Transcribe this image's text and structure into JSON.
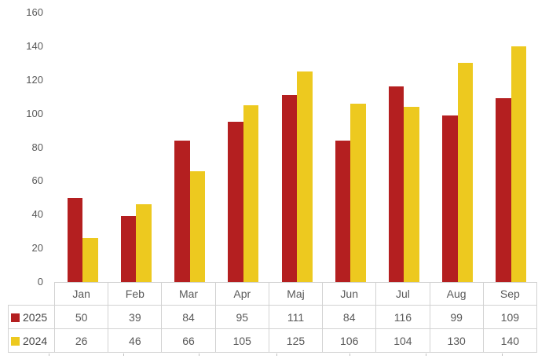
{
  "chart_data": {
    "type": "bar",
    "title": "",
    "xlabel": "",
    "ylabel": "",
    "categories": [
      "Jan",
      "Feb",
      "Mar",
      "Apr",
      "Maj",
      "Jun",
      "Jul",
      "Aug",
      "Sep"
    ],
    "series": [
      {
        "name": "2025",
        "color": "#b41f20",
        "values": [
          50,
          39,
          84,
          95,
          111,
          84,
          116,
          99,
          109
        ]
      },
      {
        "name": "2024",
        "color": "#edc91f",
        "values": [
          26,
          46,
          66,
          105,
          125,
          106,
          104,
          130,
          140
        ]
      }
    ],
    "ylim": [
      0,
      160
    ],
    "yticks": [
      0,
      20,
      40,
      60,
      80,
      100,
      120,
      140,
      160
    ],
    "grid": false,
    "legend_position": "data-table-left",
    "data_table_shown": true
  },
  "colors": {
    "background": "#ffffff",
    "axis_text": "#595959",
    "table_text": "#595959",
    "table_border": "#d2d2d2",
    "series_2025": "#b41f20",
    "series_2024": "#edc91f"
  }
}
